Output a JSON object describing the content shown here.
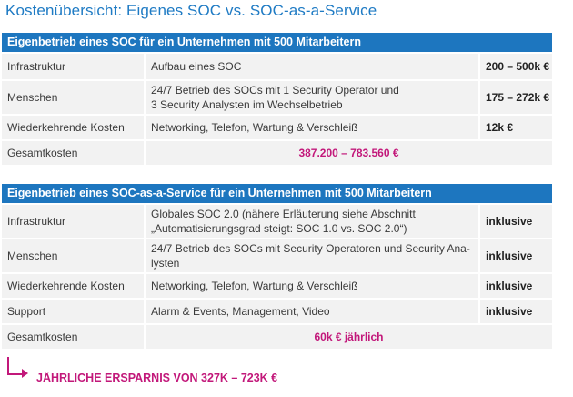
{
  "title": "Kostenübersicht: Eigenes SOC vs. SOC-as-a-Service",
  "table1": {
    "header": "Eigenbetrieb eines SOC für ein Unternehmen mit 500 Mitarbeitern",
    "rows": [
      {
        "label": "Infrastruktur",
        "desc": "Aufbau eines SOC",
        "cost": "200 – 500k €"
      },
      {
        "label": "Menschen",
        "desc_line1": "24/7 Betrieb des SOCs mit 1 Security Operator und",
        "desc_line2": "3 Security Analysten im Wechselbetrieb",
        "cost": "175 – 272k €"
      },
      {
        "label": "Wiederkehrende Kosten",
        "desc": "Networking, Telefon, Wartung & Verschleiß",
        "cost": "12k €"
      }
    ],
    "total_label": "Gesamtkosten",
    "total_value": "387.200 – 783.560 €"
  },
  "table2": {
    "header": "Eigenbetrieb eines SOC-as-a-Service für ein Unternehmen mit 500 Mitarbeitern",
    "rows": [
      {
        "label": "Infrastruktur",
        "desc_line1": "Globales SOC 2.0 (nähere Erläuterung siehe Abschnitt",
        "desc_line2": "„Automatisierungsgrad steigt: SOC 1.0 vs. SOC 2.0“)",
        "cost": "inklusive"
      },
      {
        "label": "Menschen",
        "desc_line1": "24/7 Betrieb des SOCs mit Security Operatoren und Security Ana-",
        "desc_line2": "lysten",
        "cost": "inklusive"
      },
      {
        "label": "Wiederkehrende Kosten",
        "desc": "Networking, Telefon, Wartung & Verschleiß",
        "cost": "inklusive"
      },
      {
        "label": "Support",
        "desc": "Alarm & Events, Management, Video",
        "cost": "inklusive"
      }
    ],
    "total_label": "Gesamtkosten",
    "total_value": "60k € jährlich"
  },
  "savings": "JÄHRLICHE ERSPARNIS VON 327K – 723K €",
  "colors": {
    "header_blue": "#1d76bf",
    "title_blue": "#1f7bc4",
    "accent_pink": "#c2187a",
    "row_gray": "#f2f2f2"
  },
  "icons": {
    "arrow": "bent-arrow-right-icon"
  }
}
